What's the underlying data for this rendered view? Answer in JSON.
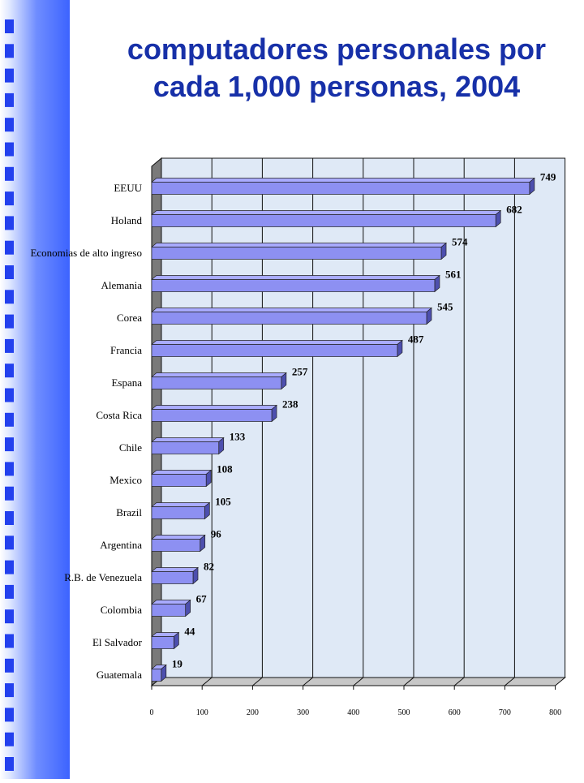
{
  "title_lines": [
    "computadores personales por",
    "cada 1,000 personas, 2004"
  ],
  "colors": {
    "title": "#1730a8",
    "bar_front": "#8d90f2",
    "bar_top": "#a9abff",
    "bar_side": "#4d4fae",
    "plot_bg": "#dfe9f6",
    "sidebar_dark": "#3c63ff",
    "sidebar_light": "#dfe7ff"
  },
  "chart_data": {
    "type": "bar",
    "orientation": "horizontal",
    "style": "3d",
    "title": "computadores personales por cada 1,000 personas, 2004",
    "xlim": [
      0,
      800
    ],
    "xticks": [
      0,
      100,
      200,
      300,
      400,
      500,
      600,
      700,
      800
    ],
    "grid": true,
    "categories": [
      "EEUU",
      "Holand",
      "Economias de alto ingreso",
      "Alemania",
      "Corea",
      "Francia",
      "Espana",
      "Costa Rica",
      "Chile",
      "Mexico",
      "Brazil",
      "Argentina",
      "R.B. de Venezuela",
      "Colombia",
      "El Salvador",
      "Guatemala"
    ],
    "values": [
      749,
      682,
      574,
      561,
      545,
      487,
      257,
      238,
      133,
      108,
      105,
      96,
      82,
      67,
      44,
      19
    ],
    "data_labels": [
      "749",
      "682",
      "574",
      "561",
      "545",
      "487",
      "257",
      "238",
      "133",
      "108",
      "105",
      "96",
      "82",
      "67",
      "44",
      "19"
    ]
  }
}
